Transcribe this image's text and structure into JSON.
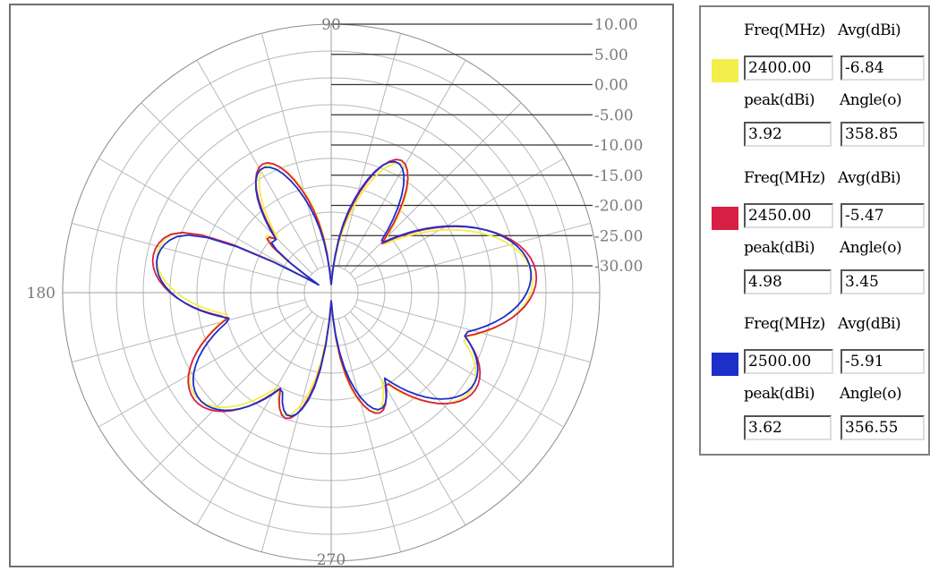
{
  "chart_data": {
    "type": "polar",
    "angle_labels": [
      {
        "angle": 90,
        "text": "90"
      },
      {
        "angle": 180,
        "text": "180"
      },
      {
        "angle": 270,
        "text": "270"
      }
    ],
    "radial_ticks": [
      "10.00",
      "5.00",
      "0.00",
      "-5.00",
      "-10.00",
      "-15.00",
      "-20.00",
      "-25.00",
      "-30.00"
    ],
    "rlim": [
      -30,
      10
    ],
    "grid": true,
    "series": [
      {
        "color": "#f2ee4a",
        "freq": "2400.00",
        "avg": "-6.84",
        "peak": "3.92",
        "angle": "358.85"
      },
      {
        "color": "#d81f44",
        "freq": "2450.00",
        "avg": "-5.47",
        "peak": "4.98",
        "angle": "3.45"
      },
      {
        "color": "#1c2fc8",
        "freq": "2500.00",
        "avg": "-5.91",
        "peak": "3.62",
        "angle": "356.55"
      }
    ]
  },
  "legend": {
    "freq_header": "Freq(MHz)",
    "avg_header": "Avg(dBi)",
    "peak_header": "peak(dBi)",
    "angle_header": "Angle(o)"
  }
}
